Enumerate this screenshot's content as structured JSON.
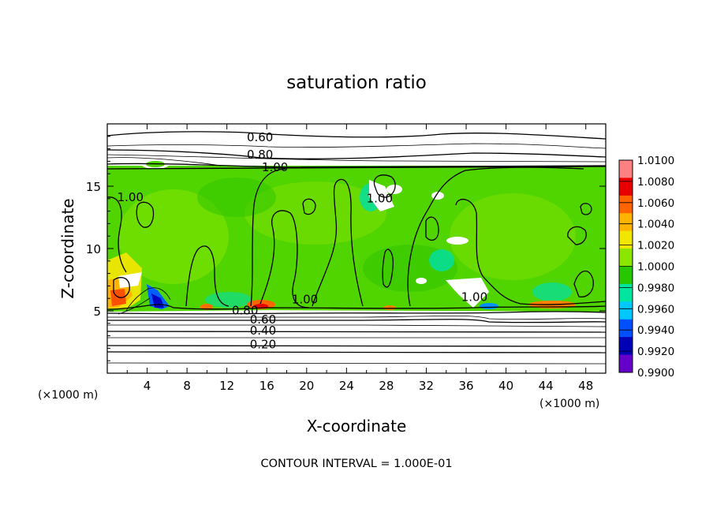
{
  "chart_data": {
    "type": "heatmap",
    "title": "saturation ratio",
    "xlabel": "X-coordinate",
    "ylabel": "Z-coordinate",
    "x_unit": "(×1000 m)",
    "x_unit_right": "(×1000 m)",
    "xlim": [
      0,
      50
    ],
    "ylim": [
      0,
      20
    ],
    "x_ticks": [
      4,
      8,
      12,
      16,
      20,
      24,
      28,
      32,
      36,
      40,
      44,
      48
    ],
    "y_ticks": [
      5,
      10,
      15
    ],
    "grid": false,
    "colorbar": {
      "placement": "right",
      "levels": [
        "1.0100",
        "1.0080",
        "1.0060",
        "1.0040",
        "1.0020",
        "1.0000",
        "0.9980",
        "0.9960",
        "0.9940",
        "0.9920",
        "0.9900"
      ],
      "colors": [
        "#ff8080",
        "#e60000",
        "#ff6400",
        "#ffb400",
        "#f0e600",
        "#8ce600",
        "#28c800",
        "#00e6a0",
        "#00c8ff",
        "#0050ff",
        "#0000b4",
        "#6400c8"
      ]
    },
    "contour_labels": [
      {
        "text": "0.60",
        "x": 14,
        "y": 18.6
      },
      {
        "text": "0.80",
        "x": 14,
        "y": 17.2
      },
      {
        "text": "1.00",
        "x": 15.5,
        "y": 16.2
      },
      {
        "text": "1.00",
        "x": 1.0,
        "y": 13.8
      },
      {
        "text": "1.00",
        "x": 26,
        "y": 13.7
      },
      {
        "text": "1.00",
        "x": 18.5,
        "y": 5.6
      },
      {
        "text": "1.00",
        "x": 35.5,
        "y": 5.8
      },
      {
        "text": "0.80",
        "x": 12.5,
        "y": 4.7
      },
      {
        "text": "0.60",
        "x": 14.3,
        "y": 4.0
      },
      {
        "text": "0.40",
        "x": 14.3,
        "y": 3.1
      },
      {
        "text": "0.20",
        "x": 14.3,
        "y": 2.0
      }
    ],
    "footnote": "CONTOUR INTERVAL = 1.000E-01"
  }
}
